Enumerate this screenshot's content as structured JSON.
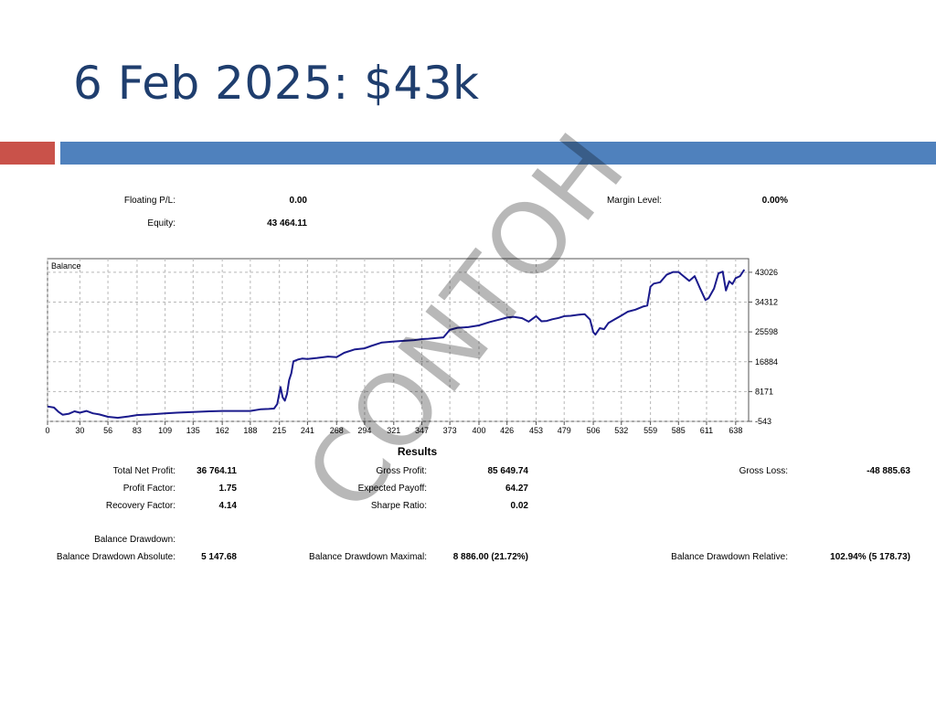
{
  "page": {
    "title": "6 Feb 2025: $43k",
    "accent_red": "#c9524a",
    "accent_blue": "#4f81bd",
    "title_color": "#1f3e6e",
    "watermark": "CONTOH"
  },
  "account": {
    "floating_pl_label": "Floating P/L:",
    "floating_pl_value": "0.00",
    "equity_label": "Equity:",
    "equity_value": "43 464.11",
    "margin_level_label": "Margin Level:",
    "margin_level_value": "0.00%"
  },
  "chart_data": {
    "type": "line",
    "title": "Balance",
    "line_color": "#1a1a8c",
    "grid": true,
    "x_ticks": [
      0,
      30,
      56,
      83,
      109,
      135,
      162,
      188,
      215,
      241,
      268,
      294,
      321,
      347,
      373,
      400,
      426,
      453,
      479,
      506,
      532,
      559,
      585,
      611,
      638
    ],
    "y_ticks": [
      43026,
      34312,
      25598,
      16884,
      8171,
      -543
    ],
    "xlim": [
      0,
      650
    ],
    "ylim": [
      -543,
      47000
    ],
    "x": [
      0,
      6,
      10,
      14,
      20,
      25,
      30,
      36,
      42,
      48,
      56,
      65,
      75,
      83,
      95,
      109,
      120,
      135,
      150,
      162,
      175,
      188,
      198,
      205,
      210,
      213,
      216,
      218,
      220,
      222,
      224,
      226,
      228,
      232,
      236,
      241,
      250,
      260,
      268,
      275,
      285,
      294,
      300,
      310,
      321,
      330,
      340,
      347,
      353,
      360,
      367,
      373,
      380,
      390,
      400,
      410,
      420,
      426,
      432,
      440,
      446,
      453,
      458,
      463,
      468,
      474,
      479,
      485,
      492,
      498,
      503,
      506,
      508,
      512,
      516,
      520,
      526,
      532,
      538,
      545,
      552,
      556,
      559,
      562,
      568,
      574,
      580,
      585,
      590,
      595,
      600,
      605,
      610,
      613,
      618,
      622,
      626,
      629,
      632,
      635,
      638,
      642,
      646
    ],
    "y": [
      3800,
      3500,
      2300,
      1400,
      1700,
      2400,
      2000,
      2500,
      1800,
      1500,
      800,
      500,
      900,
      1300,
      1500,
      1800,
      2000,
      2200,
      2400,
      2500,
      2500,
      2500,
      3000,
      3100,
      3200,
      4500,
      9500,
      6500,
      5500,
      7500,
      11500,
      13500,
      17000,
      17500,
      17800,
      17700,
      18000,
      18400,
      18200,
      19500,
      20500,
      20800,
      21500,
      22500,
      22800,
      23000,
      23200,
      23500,
      23600,
      23800,
      24000,
      26200,
      26800,
      27000,
      27500,
      28500,
      29300,
      29800,
      30000,
      29600,
      28600,
      30200,
      28700,
      28800,
      29300,
      29700,
      30200,
      30300,
      30600,
      30800,
      29200,
      25500,
      24800,
      26700,
      26400,
      28200,
      29300,
      30400,
      31500,
      32100,
      33000,
      33300,
      38800,
      39700,
      40100,
      42300,
      43100,
      43100,
      41800,
      40500,
      41900,
      38300,
      34900,
      35500,
      38300,
      42700,
      43200,
      37700,
      40400,
      39600,
      41300,
      41900,
      43800
    ]
  },
  "results": {
    "title": "Results",
    "total_net_profit_label": "Total Net Profit:",
    "total_net_profit_value": "36 764.11",
    "gross_profit_label": "Gross Profit:",
    "gross_profit_value": "85 649.74",
    "gross_loss_label": "Gross Loss:",
    "gross_loss_value": "-48 885.63",
    "profit_factor_label": "Profit Factor:",
    "profit_factor_value": "1.75",
    "expected_payoff_label": "Expected Payoff:",
    "expected_payoff_value": "64.27",
    "recovery_factor_label": "Recovery Factor:",
    "recovery_factor_value": "4.14",
    "sharpe_ratio_label": "Sharpe Ratio:",
    "sharpe_ratio_value": "0.02",
    "balance_drawdown_label": "Balance Drawdown:",
    "bd_absolute_label": "Balance Drawdown Absolute:",
    "bd_absolute_value": "5 147.68",
    "bd_maximal_label": "Balance Drawdown Maximal:",
    "bd_maximal_value": "8 886.00 (21.72%)",
    "bd_relative_label": "Balance Drawdown Relative:",
    "bd_relative_value": "102.94% (5 178.73)"
  }
}
